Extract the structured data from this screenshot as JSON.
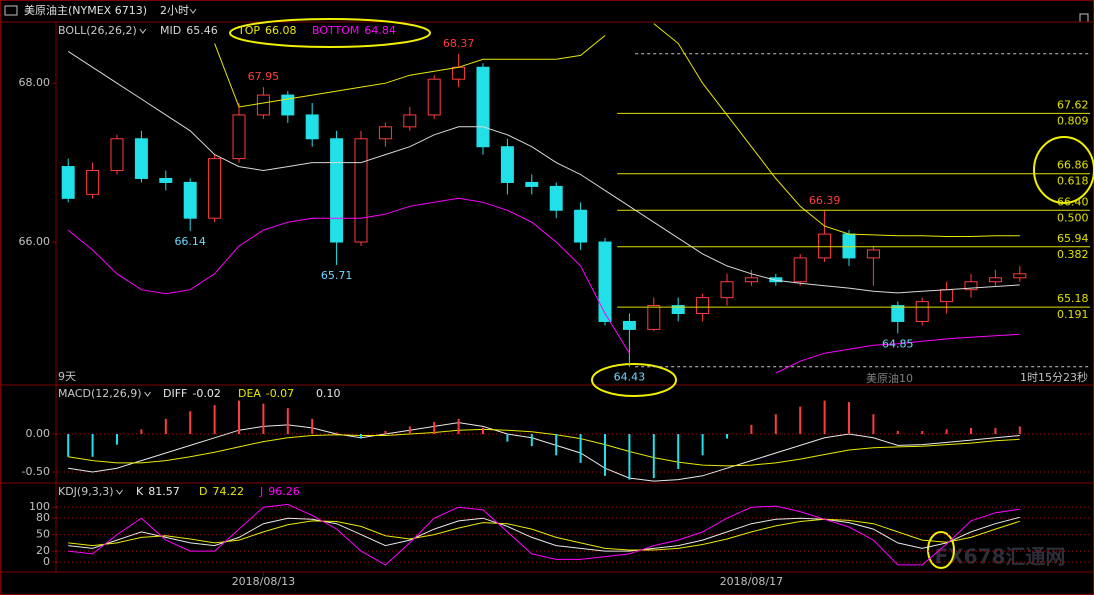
{
  "header": {
    "symbol": "美原油主(NYMEX 6713)",
    "period": "2小时"
  },
  "watermark": "FX678汇通网",
  "chart_data": [
    {
      "type": "candlestick",
      "title": "BOLL(26,26,2)",
      "up_color": "#ff3c3c",
      "down_color": "#22e0e8",
      "open": [
        66.95,
        66.6,
        66.9,
        67.3,
        66.8,
        66.75,
        66.3,
        67.05,
        67.6,
        67.85,
        67.6,
        67.3,
        66.0,
        67.3,
        67.45,
        67.6,
        68.05,
        68.2,
        67.2,
        66.75,
        66.7,
        66.4,
        66.0,
        65.0,
        64.9,
        65.2,
        65.1,
        65.3,
        65.5,
        65.55,
        65.5,
        65.8,
        66.1,
        65.8,
        65.2,
        65.0,
        65.25,
        65.4,
        65.5,
        65.55
      ],
      "high": [
        67.05,
        67.0,
        67.35,
        67.4,
        66.9,
        66.8,
        67.1,
        67.75,
        67.95,
        67.9,
        67.75,
        67.4,
        67.4,
        67.5,
        67.7,
        68.1,
        68.37,
        68.25,
        67.3,
        66.85,
        66.75,
        66.5,
        66.05,
        65.1,
        65.3,
        65.3,
        65.35,
        65.6,
        65.65,
        65.6,
        65.85,
        66.39,
        66.15,
        65.95,
        65.25,
        65.3,
        65.5,
        65.6,
        65.65,
        65.7
      ],
      "low": [
        66.5,
        66.55,
        66.85,
        66.75,
        66.65,
        66.14,
        66.25,
        67.0,
        67.55,
        67.5,
        67.2,
        65.71,
        65.95,
        67.2,
        67.4,
        67.55,
        67.95,
        67.1,
        66.6,
        66.6,
        66.3,
        65.9,
        64.95,
        64.43,
        64.88,
        65.0,
        65.0,
        65.2,
        65.45,
        65.45,
        65.45,
        65.75,
        65.7,
        65.45,
        64.85,
        64.95,
        65.1,
        65.3,
        65.45,
        65.5
      ],
      "close": [
        66.55,
        66.9,
        67.3,
        66.8,
        66.75,
        66.3,
        67.05,
        67.6,
        67.85,
        67.6,
        67.3,
        66.0,
        67.3,
        67.45,
        67.6,
        68.05,
        68.2,
        67.2,
        66.75,
        66.7,
        66.4,
        66.0,
        65.0,
        64.9,
        65.2,
        65.1,
        65.3,
        65.5,
        65.55,
        65.5,
        65.8,
        66.1,
        65.8,
        65.9,
        65.0,
        65.25,
        65.4,
        65.5,
        65.55,
        65.6
      ],
      "series": [
        {
          "name": "MID",
          "color": "#d8d8d8",
          "values": [
            68.4,
            68.2,
            68.0,
            67.8,
            67.6,
            67.4,
            67.1,
            66.95,
            66.9,
            66.95,
            67.0,
            67.0,
            67.0,
            67.1,
            67.2,
            67.35,
            67.45,
            67.45,
            67.35,
            67.2,
            67.0,
            66.85,
            66.65,
            66.45,
            66.25,
            66.05,
            65.85,
            65.7,
            65.6,
            65.52,
            65.48,
            65.45,
            65.42,
            65.38,
            65.36,
            65.38,
            65.4,
            65.42,
            65.44,
            65.46
          ]
        },
        {
          "name": "TOP",
          "color": "#e8e800",
          "values": [
            null,
            null,
            null,
            null,
            null,
            null,
            68.5,
            67.7,
            67.75,
            67.8,
            67.85,
            67.9,
            67.95,
            68.0,
            68.1,
            68.15,
            68.2,
            68.3,
            68.3,
            68.3,
            68.3,
            68.35,
            68.6,
            null,
            68.75,
            68.5,
            68.0,
            67.6,
            67.2,
            66.8,
            66.45,
            66.2,
            66.1,
            66.09,
            66.08,
            66.08,
            66.07,
            66.07,
            66.08,
            66.08
          ]
        },
        {
          "name": "BOTTOM",
          "color": "#ff00ff",
          "values": [
            66.15,
            65.9,
            65.6,
            65.4,
            65.35,
            65.4,
            65.6,
            65.95,
            66.15,
            66.25,
            66.3,
            66.3,
            66.3,
            66.35,
            66.45,
            66.5,
            66.55,
            66.5,
            66.4,
            66.25,
            66.0,
            65.7,
            65.1,
            64.6,
            null,
            null,
            null,
            null,
            null,
            64.35,
            64.5,
            64.6,
            64.65,
            64.7,
            64.72,
            64.75,
            64.78,
            64.8,
            64.82,
            64.84
          ]
        }
      ],
      "high_labels": [
        67.95,
        68.37,
        66.39
      ],
      "low_labels": [
        66.14,
        65.71,
        64.43,
        64.85
      ],
      "fibonacci": {
        "color": "#e0e000",
        "levels": [
          {
            "price": 67.62,
            "ratio": 0.809
          },
          {
            "price": 66.86,
            "ratio": 0.618
          },
          {
            "price": {
              "value": 66.4,
              "label": "66.40"
            },
            "ratio": {
              "value": 0.5,
              "label": "0.500"
            }
          },
          {
            "price": 65.94,
            "ratio": 0.382
          },
          {
            "price": 65.18,
            "ratio": 0.191
          }
        ]
      },
      "annotations": [
        "9天",
        "美原油10",
        "1时15分23秒"
      ],
      "ylim": [
        64.2,
        68.77
      ],
      "yticks": [
        {
          "value": 68,
          "label": "68.00"
        },
        {
          "value": 66,
          "label": "66.00"
        }
      ],
      "grid": false
    },
    {
      "type": "macd",
      "title": "MACD(12,26,9)",
      "series": [
        {
          "name": "DIFF",
          "color": "#e8e8e8",
          "values": [
            -0.45,
            -0.5,
            -0.45,
            -0.35,
            -0.25,
            -0.15,
            -0.05,
            0.05,
            0.1,
            0.12,
            0.08,
            0.0,
            -0.05,
            0.0,
            0.05,
            0.1,
            0.15,
            0.1,
            0.0,
            -0.05,
            -0.15,
            -0.25,
            -0.45,
            -0.58,
            -0.62,
            -0.6,
            -0.55,
            -0.45,
            -0.35,
            -0.25,
            -0.15,
            -0.05,
            0.0,
            -0.05,
            -0.15,
            -0.14,
            -0.11,
            -0.08,
            -0.05,
            -0.02
          ]
        },
        {
          "name": "DEA",
          "color": "#e8e800",
          "values": [
            -0.3,
            -0.35,
            -0.38,
            -0.38,
            -0.35,
            -0.3,
            -0.24,
            -0.17,
            -0.1,
            -0.05,
            -0.02,
            -0.01,
            -0.02,
            -0.02,
            0.0,
            0.02,
            0.05,
            0.06,
            0.05,
            0.03,
            -0.01,
            -0.06,
            -0.14,
            -0.23,
            -0.31,
            -0.37,
            -0.41,
            -0.42,
            -0.41,
            -0.38,
            -0.33,
            -0.27,
            -0.21,
            -0.18,
            -0.17,
            -0.16,
            -0.14,
            -0.12,
            -0.09,
            -0.07
          ]
        },
        {
          "kind": "histogram",
          "color": "#e8e8e8",
          "up_color": "#ff3c3c",
          "down_color": "#22e0e8",
          "values": [
            -0.3,
            -0.3,
            -0.14,
            0.06,
            0.2,
            0.3,
            0.38,
            0.44,
            0.4,
            0.34,
            0.2,
            0.02,
            -0.06,
            0.04,
            0.1,
            0.16,
            0.2,
            0.08,
            -0.1,
            -0.16,
            -0.28,
            -0.38,
            -0.55,
            -0.6,
            -0.58,
            -0.46,
            -0.28,
            -0.06,
            0.12,
            0.26,
            0.36,
            0.44,
            0.42,
            0.26,
            0.04,
            0.04,
            0.06,
            0.08,
            0.08,
            0.1
          ],
          "value_labels": [
            null,
            null,
            null,
            null,
            null,
            null,
            null,
            null,
            null,
            null,
            null,
            null,
            null,
            null,
            null,
            null,
            null,
            null,
            null,
            null,
            null,
            null,
            null,
            null,
            null,
            null,
            null,
            null,
            null,
            null,
            null,
            null,
            null,
            null,
            null,
            null,
            null,
            null,
            null,
            "0.10"
          ]
        }
      ],
      "ylim": [
        -0.645,
        0.645
      ],
      "yticks": [
        {
          "value": 0,
          "label": "0.00"
        },
        {
          "value": -0.5,
          "label": "-0.50"
        }
      ],
      "grid": true,
      "grid_color": "#a01010"
    },
    {
      "type": "line",
      "title": "KDJ(9,3,3)",
      "series": [
        {
          "name": "K",
          "color": "#e8e8e8",
          "values": [
            30,
            25,
            40,
            55,
            45,
            35,
            30,
            45,
            70,
            80,
            78,
            70,
            50,
            30,
            40,
            60,
            75,
            80,
            65,
            45,
            30,
            25,
            20,
            20,
            25,
            30,
            40,
            55,
            70,
            78,
            80,
            78,
            72,
            60,
            35,
            25,
            35,
            55,
            70,
            81.57
          ]
        },
        {
          "name": "D",
          "color": "#e8e800",
          "values": [
            35,
            30,
            35,
            45,
            48,
            42,
            35,
            40,
            55,
            68,
            75,
            74,
            65,
            48,
            42,
            50,
            62,
            72,
            70,
            60,
            45,
            35,
            25,
            22,
            22,
            25,
            32,
            42,
            55,
            66,
            74,
            78,
            76,
            70,
            55,
            40,
            36,
            45,
            60,
            74.22
          ]
        },
        {
          "name": "J",
          "color": "#ff00ff",
          "values": [
            20,
            15,
            50,
            80,
            40,
            20,
            20,
            60,
            100,
            105,
            85,
            60,
            20,
            -5,
            35,
            80,
            100,
            95,
            55,
            15,
            5,
            5,
            10,
            15,
            30,
            40,
            55,
            80,
            100,
            102,
            92,
            78,
            64,
            40,
            -5,
            -5,
            33,
            75,
            90,
            96.26
          ]
        }
      ],
      "ylim": [
        -18,
        144
      ],
      "yticks": [
        100,
        80,
        50,
        20,
        0
      ],
      "grid": true,
      "grid_color": "#a01010",
      "xticks": [
        {
          "value": 8,
          "label": "2018/08/13"
        },
        {
          "value": 28,
          "label": "2018/08/17"
        }
      ]
    }
  ]
}
